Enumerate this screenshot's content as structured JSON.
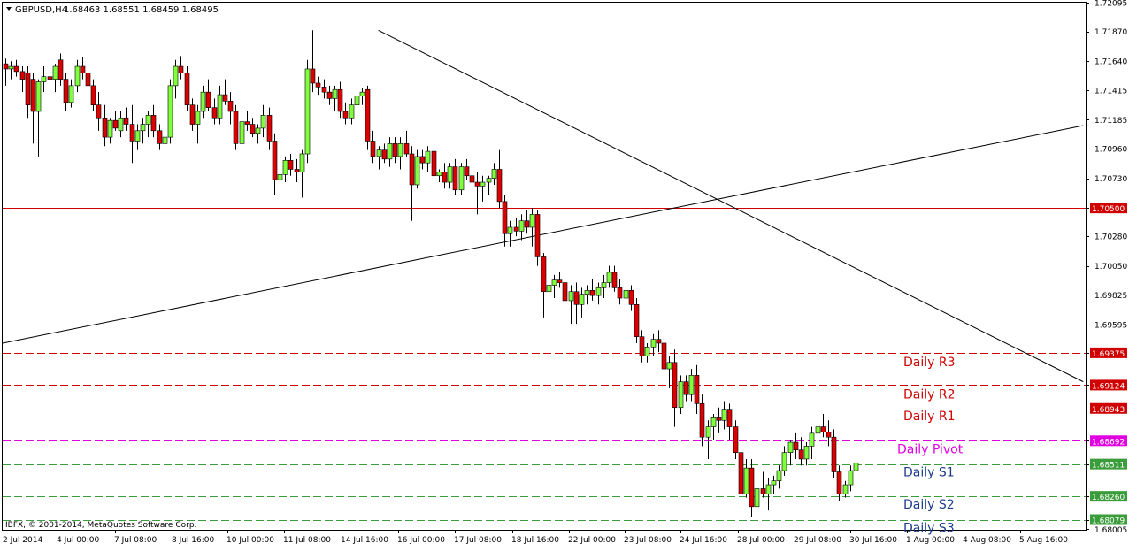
{
  "header": {
    "symbol_timeframe": "GBPUSD,H4",
    "ohlc": "1.68463 1.68551 1.68459 1.68495"
  },
  "footer": {
    "copyright": "IBFX, © 2001-2014, MetaQuotes Software Corp."
  },
  "colors": {
    "background": "#ffffff",
    "bull": "#80ff3e",
    "bear": "#d80000",
    "wick": "#000000",
    "resistance": "#d00000",
    "pivot": "#e000e0",
    "support": "#3a9c3a",
    "label_support": "#1c3c8a",
    "trendline": "#000000"
  },
  "chart_data": {
    "type": "candlestick",
    "title": "GBPUSD,H4",
    "ylim": [
      1.68,
      1.72095
    ],
    "y_ticks": [
      "1.72095",
      "1.71870",
      "1.71640",
      "1.71415",
      "1.71185",
      "1.70960",
      "1.70730",
      "1.70500",
      "1.70280",
      "1.70050",
      "1.69825",
      "1.69595",
      "1.69375",
      "1.69124",
      "1.68943",
      "1.68692",
      "1.68511",
      "1.68260",
      "1.68079",
      "1.68005"
    ],
    "x_ticks": [
      "2 Jul 2014",
      "4 Jul 00:00",
      "7 Jul 08:00",
      "8 Jul 16:00",
      "10 Jul 00:00",
      "11 Jul 08:00",
      "14 Jul 16:00",
      "16 Jul 00:00",
      "17 Jul 08:00",
      "18 Jul 16:00",
      "22 Jul 00:00",
      "23 Jul 08:00",
      "24 Jul 16:00",
      "28 Jul 00:00",
      "29 Jul 08:00",
      "30 Jul 16:00",
      "1 Aug 00:00",
      "4 Aug 08:00",
      "5 Aug 16:00"
    ],
    "levels": [
      {
        "name": "Daily R3",
        "value": 1.69375,
        "tag": "1.69375",
        "kind": "resistance",
        "style": "dashed"
      },
      {
        "name": "Daily R2",
        "value": 1.69124,
        "tag": "1.69124",
        "kind": "resistance",
        "style": "dashed"
      },
      {
        "name": "Daily R1",
        "value": 1.68943,
        "tag": "1.68943",
        "kind": "resistance",
        "style": "dashed"
      },
      {
        "name": "Daily Pivot",
        "value": 1.68692,
        "tag": "1.68692",
        "kind": "pivot",
        "style": "dashed"
      },
      {
        "name": "Daily S1",
        "value": 1.68511,
        "tag": "1.68511",
        "kind": "support",
        "style": "dashed"
      },
      {
        "name": "Daily S2",
        "value": 1.6826,
        "tag": "1.68260",
        "kind": "support",
        "style": "dashed"
      },
      {
        "name": "Daily S3",
        "value": 1.68079,
        "tag": "1.68079",
        "kind": "support",
        "style": "dashed"
      },
      {
        "name": "",
        "value": 1.705,
        "tag": "1.70500",
        "kind": "resistance",
        "style": "solid"
      }
    ],
    "trendlines": [
      {
        "from": {
          "bar": -0.5,
          "price": 1.6945
        },
        "to": {
          "bar": 196.5,
          "price": 1.7114
        }
      },
      {
        "from": {
          "bar": 68,
          "price": 1.7188
        },
        "to": {
          "bar": 196.5,
          "price": 1.6915
        }
      }
    ],
    "candles": [
      [
        1.7162,
        1.7166,
        1.7145,
        1.7158
      ],
      [
        1.7158,
        1.7164,
        1.715,
        1.716
      ],
      [
        1.716,
        1.7165,
        1.7152,
        1.7156
      ],
      [
        1.7156,
        1.716,
        1.714,
        1.715
      ],
      [
        1.7155,
        1.716,
        1.712,
        1.713
      ],
      [
        1.715,
        1.7155,
        1.71,
        1.7125
      ],
      [
        1.7125,
        1.715,
        1.709,
        1.7148
      ],
      [
        1.7148,
        1.716,
        1.714,
        1.7152
      ],
      [
        1.7152,
        1.7158,
        1.7145,
        1.715
      ],
      [
        1.715,
        1.7162,
        1.714,
        1.716
      ],
      [
        1.7165,
        1.717,
        1.7145,
        1.715
      ],
      [
        1.715,
        1.7155,
        1.7125,
        1.7132
      ],
      [
        1.7132,
        1.715,
        1.7128,
        1.7145
      ],
      [
        1.7145,
        1.7165,
        1.714,
        1.716
      ],
      [
        1.716,
        1.7167,
        1.715,
        1.7155
      ],
      [
        1.7155,
        1.716,
        1.713,
        1.7145
      ],
      [
        1.7145,
        1.715,
        1.7125,
        1.713
      ],
      [
        1.713,
        1.714,
        1.711,
        1.712
      ],
      [
        1.712,
        1.713,
        1.7098,
        1.7105
      ],
      [
        1.7105,
        1.712,
        1.71,
        1.7118
      ],
      [
        1.7118,
        1.7125,
        1.711,
        1.7112
      ],
      [
        1.711,
        1.7125,
        1.7105,
        1.712
      ],
      [
        1.712,
        1.7128,
        1.711,
        1.7115
      ],
      [
        1.7115,
        1.713,
        1.7085,
        1.7102
      ],
      [
        1.7102,
        1.7115,
        1.7095,
        1.711
      ],
      [
        1.711,
        1.712,
        1.71,
        1.7115
      ],
      [
        1.7115,
        1.7125,
        1.7105,
        1.7122
      ],
      [
        1.7122,
        1.713,
        1.7105,
        1.711
      ],
      [
        1.711,
        1.7115,
        1.7095,
        1.71
      ],
      [
        1.71,
        1.711,
        1.7093,
        1.7105
      ],
      [
        1.7105,
        1.715,
        1.71,
        1.7145
      ],
      [
        1.7145,
        1.7165,
        1.7135,
        1.716
      ],
      [
        1.716,
        1.7168,
        1.715,
        1.7155
      ],
      [
        1.7155,
        1.716,
        1.7125,
        1.713
      ],
      [
        1.713,
        1.7135,
        1.711,
        1.7115
      ],
      [
        1.7115,
        1.713,
        1.71,
        1.7125
      ],
      [
        1.7125,
        1.7145,
        1.712,
        1.714
      ],
      [
        1.714,
        1.715,
        1.7125,
        1.7128
      ],
      [
        1.7128,
        1.7135,
        1.7115,
        1.712
      ],
      [
        1.712,
        1.7145,
        1.7115,
        1.7138
      ],
      [
        1.7138,
        1.715,
        1.713,
        1.7133
      ],
      [
        1.7133,
        1.714,
        1.7115,
        1.7125
      ],
      [
        1.7125,
        1.713,
        1.7095,
        1.71
      ],
      [
        1.71,
        1.712,
        1.7095,
        1.7117
      ],
      [
        1.7117,
        1.7125,
        1.711,
        1.7115
      ],
      [
        1.7115,
        1.712,
        1.7105,
        1.7108
      ],
      [
        1.7108,
        1.7115,
        1.71,
        1.7112
      ],
      [
        1.7112,
        1.713,
        1.7105,
        1.7122
      ],
      [
        1.7122,
        1.7128,
        1.7095,
        1.7102
      ],
      [
        1.7102,
        1.7108,
        1.706,
        1.7072
      ],
      [
        1.7072,
        1.708,
        1.7064,
        1.7076
      ],
      [
        1.7076,
        1.709,
        1.707,
        1.7087
      ],
      [
        1.7087,
        1.7092,
        1.7075,
        1.708
      ],
      [
        1.708,
        1.7088,
        1.707,
        1.7078
      ],
      [
        1.7078,
        1.7095,
        1.7058,
        1.7092
      ],
      [
        1.7092,
        1.7165,
        1.7085,
        1.7158
      ],
      [
        1.7158,
        1.7188,
        1.714,
        1.7147
      ],
      [
        1.7147,
        1.7152,
        1.7138,
        1.7144
      ],
      [
        1.7144,
        1.715,
        1.7135,
        1.714
      ],
      [
        1.714,
        1.7145,
        1.713,
        1.7135
      ],
      [
        1.7135,
        1.7145,
        1.7125,
        1.7142
      ],
      [
        1.7142,
        1.7148,
        1.712,
        1.7125
      ],
      [
        1.7125,
        1.7132,
        1.7115,
        1.712
      ],
      [
        1.712,
        1.7135,
        1.7115,
        1.713
      ],
      [
        1.713,
        1.714,
        1.7125,
        1.7137
      ],
      [
        1.7137,
        1.7143,
        1.713,
        1.714
      ],
      [
        1.7142,
        1.7145,
        1.7095,
        1.7102
      ],
      [
        1.7102,
        1.711,
        1.7085,
        1.709
      ],
      [
        1.709,
        1.7098,
        1.708,
        1.7095
      ],
      [
        1.7095,
        1.71,
        1.7085,
        1.7088
      ],
      [
        1.7088,
        1.7105,
        1.7082,
        1.71
      ],
      [
        1.71,
        1.7105,
        1.7085,
        1.709
      ],
      [
        1.709,
        1.7105,
        1.708,
        1.71
      ],
      [
        1.71,
        1.711,
        1.709,
        1.7092
      ],
      [
        1.7092,
        1.7098,
        1.704,
        1.7068
      ],
      [
        1.7068,
        1.7095,
        1.7065,
        1.709
      ],
      [
        1.709,
        1.7095,
        1.708,
        1.7085
      ],
      [
        1.7085,
        1.7098,
        1.7078,
        1.7094
      ],
      [
        1.7094,
        1.71,
        1.707,
        1.7075
      ],
      [
        1.7075,
        1.708,
        1.707,
        1.7078
      ],
      [
        1.7078,
        1.7085,
        1.7065,
        1.707
      ],
      [
        1.707,
        1.7085,
        1.7065,
        1.7082
      ],
      [
        1.7082,
        1.7088,
        1.706,
        1.7064
      ],
      [
        1.7064,
        1.7085,
        1.706,
        1.7082
      ],
      [
        1.7082,
        1.7088,
        1.7072,
        1.7075
      ],
      [
        1.7075,
        1.7085,
        1.7065,
        1.707
      ],
      [
        1.707,
        1.7078,
        1.7045,
        1.7067
      ],
      [
        1.7067,
        1.7075,
        1.7055,
        1.707
      ],
      [
        1.707,
        1.7075,
        1.706,
        1.7073
      ],
      [
        1.7073,
        1.7085,
        1.7068,
        1.708
      ],
      [
        1.708,
        1.7095,
        1.705,
        1.7055
      ],
      [
        1.7055,
        1.706,
        1.702,
        1.703
      ],
      [
        1.703,
        1.704,
        1.702,
        1.7035
      ],
      [
        1.7035,
        1.7042,
        1.7028,
        1.7032
      ],
      [
        1.7032,
        1.7045,
        1.7025,
        1.704
      ],
      [
        1.704,
        1.7048,
        1.703,
        1.7035
      ],
      [
        1.7035,
        1.705,
        1.702,
        1.7045
      ],
      [
        1.7045,
        1.7048,
        1.7005,
        1.7012
      ],
      [
        1.7012,
        1.7015,
        1.6965,
        1.6985
      ],
      [
        1.6985,
        1.6995,
        1.6975,
        1.699
      ],
      [
        1.699,
        1.6998,
        1.698,
        1.6994
      ],
      [
        1.6994,
        1.7,
        1.6988,
        1.6992
      ],
      [
        1.6992,
        1.7,
        1.697,
        1.6978
      ],
      [
        1.6978,
        1.699,
        1.696,
        1.6985
      ],
      [
        1.6985,
        1.6992,
        1.696,
        1.6975
      ],
      [
        1.6975,
        1.6988,
        1.6965,
        1.6983
      ],
      [
        1.6983,
        1.699,
        1.6975,
        1.6986
      ],
      [
        1.6986,
        1.6995,
        1.6978,
        1.6982
      ],
      [
        1.6982,
        1.6992,
        1.6975,
        1.6988
      ],
      [
        1.6988,
        1.6998,
        1.698,
        1.6992
      ],
      [
        1.6992,
        1.7005,
        1.6988,
        1.7
      ],
      [
        1.7,
        1.7005,
        1.6985,
        1.6988
      ],
      [
        1.6988,
        1.6995,
        1.6975,
        1.698
      ],
      [
        1.698,
        1.699,
        1.6975,
        1.6986
      ],
      [
        1.6986,
        1.699,
        1.697,
        1.6975
      ],
      [
        1.6975,
        1.698,
        1.6945,
        1.695
      ],
      [
        1.695,
        1.6955,
        1.693,
        1.6935
      ],
      [
        1.6935,
        1.6945,
        1.693,
        1.6942
      ],
      [
        1.6942,
        1.6952,
        1.6935,
        1.6948
      ],
      [
        1.6948,
        1.6955,
        1.6938,
        1.6945
      ],
      [
        1.6945,
        1.695,
        1.692,
        1.6925
      ],
      [
        1.6925,
        1.6935,
        1.691,
        1.693
      ],
      [
        1.693,
        1.694,
        1.688,
        1.6895
      ],
      [
        1.6895,
        1.692,
        1.689,
        1.6915
      ],
      [
        1.6915,
        1.692,
        1.69,
        1.6905
      ],
      [
        1.6905,
        1.6925,
        1.69,
        1.692
      ],
      [
        1.692,
        1.6928,
        1.689,
        1.6898
      ],
      [
        1.6898,
        1.6905,
        1.6865,
        1.6872
      ],
      [
        1.6872,
        1.6885,
        1.6855,
        1.688
      ],
      [
        1.688,
        1.689,
        1.687,
        1.6887
      ],
      [
        1.6887,
        1.6895,
        1.6875,
        1.6885
      ],
      [
        1.6885,
        1.69,
        1.6878,
        1.6893
      ],
      [
        1.6893,
        1.6898,
        1.687,
        1.688
      ],
      [
        1.688,
        1.6885,
        1.6855,
        1.686
      ],
      [
        1.686,
        1.6868,
        1.682,
        1.6828
      ],
      [
        1.6828,
        1.6855,
        1.6825,
        1.6848
      ],
      [
        1.6848,
        1.6855,
        1.681,
        1.6818
      ],
      [
        1.6818,
        1.6838,
        1.6812,
        1.6832
      ],
      [
        1.6832,
        1.6845,
        1.6825,
        1.6828
      ],
      [
        1.6828,
        1.684,
        1.6815,
        1.6835
      ],
      [
        1.6835,
        1.6842,
        1.6828,
        1.6838
      ],
      [
        1.6838,
        1.685,
        1.6832,
        1.6846
      ],
      [
        1.6846,
        1.6865,
        1.6842,
        1.686
      ],
      [
        1.686,
        1.687,
        1.685,
        1.6868
      ],
      [
        1.6868,
        1.6875,
        1.6855,
        1.6862
      ],
      [
        1.6862,
        1.6872,
        1.685,
        1.6855
      ],
      [
        1.6855,
        1.6868,
        1.685,
        1.6865
      ],
      [
        1.6865,
        1.688,
        1.6855,
        1.6875
      ],
      [
        1.6875,
        1.6885,
        1.6868,
        1.688
      ],
      [
        1.688,
        1.689,
        1.6872,
        1.6876
      ],
      [
        1.6876,
        1.6885,
        1.6865,
        1.6872
      ],
      [
        1.6872,
        1.6878,
        1.684,
        1.6845
      ],
      [
        1.6845,
        1.685,
        1.6822,
        1.6828
      ],
      [
        1.6828,
        1.6838,
        1.6825,
        1.6835
      ],
      [
        1.6835,
        1.685,
        1.683,
        1.6846
      ],
      [
        1.6846,
        1.6856,
        1.6842,
        1.6852
      ]
    ]
  }
}
